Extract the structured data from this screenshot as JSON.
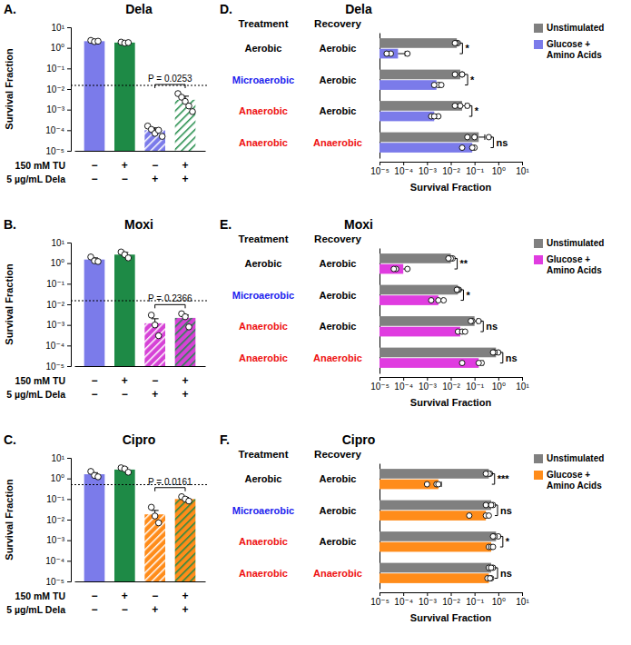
{
  "chart_data": [
    {
      "type": "bar",
      "panel_label": "A.",
      "title": "Dela",
      "y_label": "Survival Fraction",
      "categories": [
        null,
        null,
        null,
        null
      ],
      "values": [
        2.1,
        1.8,
        0.0001,
        0.003
      ],
      "errors": [
        0.1,
        0.1,
        3e-05,
        0.0015
      ],
      "replicates": [
        [
          2.3,
          2.0,
          2.1
        ],
        [
          1.9,
          1.7,
          1.8
        ],
        [
          0.00016,
          0.00011,
          7e-05,
          0.0001,
          5e-05
        ],
        [
          0.006,
          0.004,
          0.0025,
          0.0015,
          0.0008
        ]
      ],
      "colors": [
        "#7b7bea",
        "#1e8a46",
        "#7b7bea",
        "#ffffff"
      ],
      "log": "y",
      "ylim": [
        1e-05,
        10
      ],
      "yticks": [
        {
          "value": 1e-05,
          "label": "10⁻⁵"
        },
        {
          "value": 0.0001,
          "label": "10⁻⁴"
        },
        {
          "value": 0.001,
          "label": "10⁻³"
        },
        {
          "value": 0.01,
          "label": "10⁻²"
        },
        {
          "value": 0.1,
          "label": "10⁻¹"
        },
        {
          "value": 1,
          "label": "10⁰"
        },
        {
          "value": 10,
          "label": "10¹"
        }
      ],
      "reference_line": 0.015,
      "annotation": "P = 0.0253",
      "conditions": [
        {
          "label": "150 mM TU",
          "values": [
            "−",
            "+",
            "−",
            "+"
          ]
        },
        {
          "label": "5 µg/mL Dela",
          "values": [
            "−",
            "−",
            "+",
            "+"
          ]
        }
      ]
    },
    {
      "type": "bar",
      "panel_label": "B.",
      "title": "Moxi",
      "y_label": "Survival Fraction",
      "categories": [
        null,
        null,
        null,
        null
      ],
      "values": [
        1.5,
        2.6,
        0.0012,
        0.0022
      ],
      "errors": [
        0.3,
        0.7,
        0.0008,
        0.0008
      ],
      "replicates": [
        [
          2.0,
          1.3,
          1.2
        ],
        [
          3.5,
          2.6,
          1.8
        ],
        [
          0.003,
          0.001,
          0.0003
        ],
        [
          0.0035,
          0.0025,
          0.0008
        ]
      ],
      "colors": [
        "#7b7bea",
        "#1e8a46",
        "#d642d6",
        "#d642d6"
      ],
      "log": "y",
      "ylim": [
        1e-05,
        10
      ],
      "yticks": [
        {
          "value": 1e-05,
          "label": "10⁻⁵"
        },
        {
          "value": 0.0001,
          "label": "10⁻⁴"
        },
        {
          "value": 0.001,
          "label": "10⁻³"
        },
        {
          "value": 0.01,
          "label": "10⁻²"
        },
        {
          "value": 0.1,
          "label": "10⁻¹"
        },
        {
          "value": 1,
          "label": "10⁰"
        },
        {
          "value": 10,
          "label": "10¹"
        }
      ],
      "reference_line": 0.015,
      "annotation": "P = 0.2366",
      "conditions": [
        {
          "label": "150 mM TU",
          "values": [
            "−",
            "+",
            "−",
            "+"
          ]
        },
        {
          "label": "5 µg/mL Dela",
          "values": [
            "−",
            "−",
            "+",
            "+"
          ]
        }
      ]
    },
    {
      "type": "bar",
      "panel_label": "C.",
      "title": "Cipro",
      "y_label": "Survival Fraction",
      "categories": [
        null,
        null,
        null,
        null
      ],
      "values": [
        1.6,
        2.7,
        0.018,
        0.1
      ],
      "errors": [
        0.3,
        0.6,
        0.01,
        0.02
      ],
      "replicates": [
        [
          2.2,
          1.4,
          1.2
        ],
        [
          3.3,
          2.9,
          2.0
        ],
        [
          0.04,
          0.015,
          0.007
        ],
        [
          0.13,
          0.1,
          0.08
        ]
      ],
      "colors": [
        "#7b7bea",
        "#1e8a46",
        "#ff8c1a",
        "#ff8c1a"
      ],
      "log": "y",
      "ylim": [
        1e-05,
        10
      ],
      "yticks": [
        {
          "value": 1e-05,
          "label": "10⁻⁵"
        },
        {
          "value": 0.0001,
          "label": "10⁻⁴"
        },
        {
          "value": 0.001,
          "label": "10⁻³"
        },
        {
          "value": 0.01,
          "label": "10⁻²"
        },
        {
          "value": 0.1,
          "label": "10⁻¹"
        },
        {
          "value": 1,
          "label": "10⁰"
        },
        {
          "value": 10,
          "label": "10¹"
        }
      ],
      "reference_line": 0.5,
      "annotation": "P = 0.0161",
      "conditions": [
        {
          "label": "150 mM TU",
          "values": [
            "−",
            "+",
            "−",
            "+"
          ]
        },
        {
          "label": "5 µg/mL Dela",
          "values": [
            "−",
            "−",
            "+",
            "+"
          ]
        }
      ]
    },
    {
      "type": "bar",
      "orientation": "horizontal",
      "panel_label": "D.",
      "title": "Dela",
      "x_label": "Survival Fraction",
      "categories": [
        null,
        null,
        null,
        null
      ],
      "row_headers": [
        "Treatment",
        "Recovery"
      ],
      "rows": [
        [
          "Aerobic",
          "Aerobic"
        ],
        [
          "Microaerobic",
          "Aerobic"
        ],
        [
          "Anaerobic",
          "Aerobic"
        ],
        [
          "Anaerobic",
          "Anaerobic"
        ]
      ],
      "row_colors": [
        [
          "#000000",
          "#000000"
        ],
        [
          "#2222ee",
          "#000000"
        ],
        [
          "#ee1111",
          "#000000"
        ],
        [
          "#ee1111",
          "#ee1111"
        ]
      ],
      "series": [
        {
          "name": "Unstimulated",
          "color": "#808080",
          "values": [
            0.018,
            0.025,
            0.03,
            0.15
          ],
          "errors": [
            0.002,
            0.008,
            0.012,
            0.12
          ],
          "replicates": [
            [
              0.02,
              0.017,
              0.015
            ],
            [
              0.03,
              0.015,
              0.03
            ],
            [
              0.05,
              0.025,
              0.015
            ],
            [
              0.4,
              0.1,
              0.05
            ]
          ]
        },
        {
          "name": "Glucose + Amino Acids",
          "color": "#7b7bea",
          "values": [
            6e-05,
            0.0025,
            0.002,
            0.08
          ],
          "errors": [
            6e-05,
            0.0008,
            0.0005,
            0.02
          ],
          "replicates": [
            [
              3e-05,
              0.00015,
              2e-05
            ],
            [
              0.003,
              0.004,
              0.002
            ],
            [
              0.003,
              0.0015,
              0.002
            ],
            [
              0.1,
              0.08,
              0.03
            ]
          ]
        }
      ],
      "annotations": [
        "*",
        "*",
        "*",
        "ns"
      ],
      "log": "x",
      "xlim": [
        1e-05,
        10
      ],
      "xticks": [
        {
          "value": 1e-05,
          "label": "10⁻⁵"
        },
        {
          "value": 0.0001,
          "label": "10⁻⁴"
        },
        {
          "value": 0.001,
          "label": "10⁻³"
        },
        {
          "value": 0.01,
          "label": "10⁻²"
        },
        {
          "value": 0.1,
          "label": "10⁻¹"
        },
        {
          "value": 1,
          "label": "10⁰"
        },
        {
          "value": 10,
          "label": "10¹"
        }
      ],
      "legend": "right"
    },
    {
      "type": "bar",
      "orientation": "horizontal",
      "panel_label": "E.",
      "title": "Moxi",
      "x_label": "Survival Fraction",
      "categories": [
        null,
        null,
        null,
        null
      ],
      "row_headers": [
        "Treatment",
        "Recovery"
      ],
      "rows": [
        [
          "Aerobic",
          "Aerobic"
        ],
        [
          "Microaerobic",
          "Aerobic"
        ],
        [
          "Anaerobic",
          "Aerobic"
        ],
        [
          "Anaerobic",
          "Anaerobic"
        ]
      ],
      "row_colors": [
        [
          "#000000",
          "#000000"
        ],
        [
          "#2222ee",
          "#000000"
        ],
        [
          "#ee1111",
          "#000000"
        ],
        [
          "#ee1111",
          "#ee1111"
        ]
      ],
      "series": [
        {
          "name": "Unstimulated",
          "color": "#808080",
          "values": [
            0.01,
            0.02,
            0.1,
            0.8
          ],
          "errors": [
            0.002,
            0.002,
            0.03,
            0.2
          ],
          "replicates": [
            [
              0.012,
              0.01,
              0.008
            ],
            [
              0.022,
              0.02,
              0.018
            ],
            [
              0.15,
              0.08,
              0.07
            ],
            [
              1.0,
              0.7,
              0.6
            ]
          ]
        },
        {
          "name": "Glucose + Amino Acids",
          "color": "#e03ce0",
          "values": [
            0.0001,
            0.003,
            0.025,
            0.15
          ],
          "errors": [
            4e-05,
            0.0015,
            0.01,
            0.08
          ],
          "replicates": [
            [
              0.00015,
              5e-05,
              4e-05
            ],
            [
              0.003,
              0.0015,
              0.005
            ],
            [
              0.02,
              0.03,
              0.04
            ],
            [
              0.2,
              0.03,
              0.15
            ]
          ]
        }
      ],
      "annotations": [
        "**",
        "*",
        "ns",
        "ns"
      ],
      "log": "x",
      "xlim": [
        1e-05,
        10
      ],
      "xticks": [
        {
          "value": 1e-05,
          "label": "10⁻⁵"
        },
        {
          "value": 0.0001,
          "label": "10⁻⁴"
        },
        {
          "value": 0.001,
          "label": "10⁻³"
        },
        {
          "value": 0.01,
          "label": "10⁻²"
        },
        {
          "value": 0.1,
          "label": "10⁻¹"
        },
        {
          "value": 1,
          "label": "10⁰"
        },
        {
          "value": 10,
          "label": "10¹"
        }
      ],
      "legend": "right"
    },
    {
      "type": "bar",
      "orientation": "horizontal",
      "panel_label": "F.",
      "title": "Cipro",
      "x_label": "Survival Fraction",
      "categories": [
        null,
        null,
        null,
        null
      ],
      "row_headers": [
        "Treatment",
        "Recovery"
      ],
      "rows": [
        [
          "Aerobic",
          "Aerobic"
        ],
        [
          "Microaerobic",
          "Aerobic"
        ],
        [
          "Anaerobic",
          "Aerobic"
        ],
        [
          "Anaerobic",
          "Anaerobic"
        ]
      ],
      "row_colors": [
        [
          "#000000",
          "#000000"
        ],
        [
          "#2222ee",
          "#000000"
        ],
        [
          "#ee1111",
          "#000000"
        ],
        [
          "#ee1111",
          "#ee1111"
        ]
      ],
      "series": [
        {
          "name": "Unstimulated",
          "color": "#808080",
          "values": [
            0.4,
            0.5,
            0.8,
            0.5
          ],
          "errors": [
            0.05,
            0.1,
            0.15,
            0.1
          ],
          "replicates": [
            [
              0.45,
              0.4,
              0.3
            ],
            [
              0.6,
              0.5,
              0.3
            ],
            [
              1.0,
              0.7,
              0.6
            ],
            [
              0.6,
              0.4,
              0.5
            ]
          ]
        },
        {
          "name": "Glucose + Amino Acids",
          "color": "#ff8c1a",
          "values": [
            0.003,
            0.3,
            0.5,
            0.4
          ],
          "errors": [
            0.001,
            0.1,
            0.08,
            0.05
          ],
          "replicates": [
            [
              0.001,
              0.0025,
              0.003
            ],
            [
              0.3,
              0.06,
              0.4
            ],
            [
              0.4,
              0.5,
              0.6
            ],
            [
              0.35,
              0.5,
              0.45
            ]
          ]
        }
      ],
      "annotations": [
        "***",
        "ns",
        "*",
        "ns"
      ],
      "log": "x",
      "xlim": [
        1e-05,
        10
      ],
      "xticks": [
        {
          "value": 1e-05,
          "label": "10⁻⁵"
        },
        {
          "value": 0.0001,
          "label": "10⁻⁴"
        },
        {
          "value": 0.001,
          "label": "10⁻³"
        },
        {
          "value": 0.01,
          "label": "10⁻²"
        },
        {
          "value": 0.1,
          "label": "10⁻¹"
        },
        {
          "value": 1,
          "label": "10⁰"
        },
        {
          "value": 10,
          "label": "10¹"
        }
      ],
      "legend": "right"
    }
  ]
}
